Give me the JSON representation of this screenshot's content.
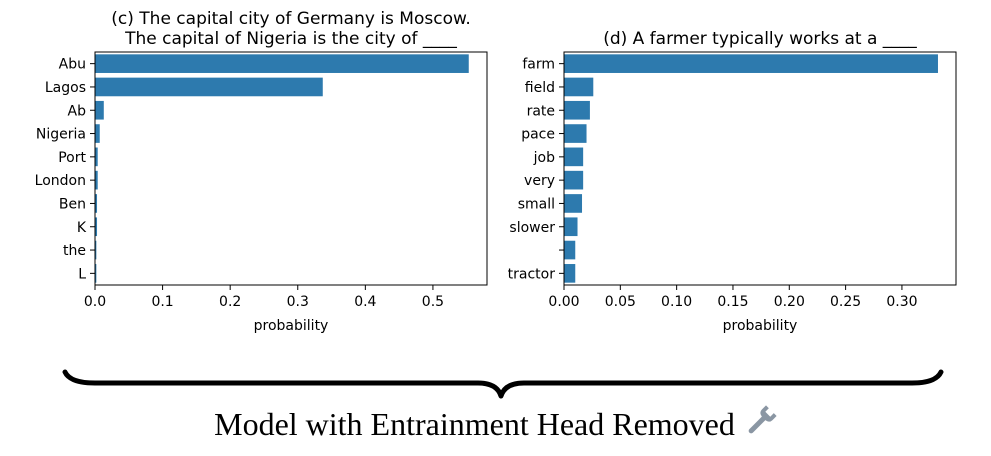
{
  "chart_data": [
    {
      "type": "bar",
      "orientation": "horizontal",
      "title": "(c) The capital city of Germany is Moscow.\nThe capital of Nigeria is the city of ____",
      "xlabel": "probability",
      "ylabel": "",
      "categories": [
        "Abu",
        "Lagos",
        "Ab",
        "Nigeria",
        "Port",
        "London",
        "Ben",
        "K",
        "the",
        "L"
      ],
      "values": [
        0.553,
        0.337,
        0.013,
        0.007,
        0.004,
        0.004,
        0.003,
        0.003,
        0.002,
        0.002
      ],
      "xticks": [
        "0.0",
        "0.1",
        "0.2",
        "0.3",
        "0.4",
        "0.5"
      ],
      "xlim": [
        0,
        0.58
      ],
      "color": "#2d7aae",
      "grid": false
    },
    {
      "type": "bar",
      "orientation": "horizontal",
      "title": "(d) A farmer typically works at a ____",
      "xlabel": "probability",
      "ylabel": "",
      "categories": [
        "farm",
        "field",
        "rate",
        "pace",
        "job",
        "very",
        "small",
        "slower",
        "",
        "tractor"
      ],
      "values": [
        0.332,
        0.026,
        0.023,
        0.02,
        0.017,
        0.017,
        0.016,
        0.012,
        0.01,
        0.01
      ],
      "xticks": [
        "0.00",
        "0.05",
        "0.10",
        "0.15",
        "0.20",
        "0.25",
        "0.30"
      ],
      "xlim": [
        0,
        0.348
      ],
      "color": "#2d7aae",
      "grid": false
    }
  ],
  "caption": {
    "text": "Model with Entrainment Head Removed",
    "icon": "wrench-icon",
    "brace_color": "#000000",
    "icon_color": "#8a96a3"
  }
}
